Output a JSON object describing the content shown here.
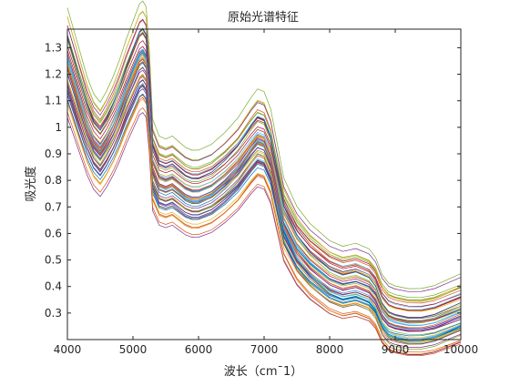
{
  "chart_data": {
    "type": "line",
    "title": "原始光谱特征",
    "xlabel": "波长（cm¯1）",
    "ylabel": "吸光度",
    "xlim": [
      4000,
      10000
    ],
    "ylim": [
      0.2,
      1.37
    ],
    "xticks": [
      4000,
      5000,
      6000,
      7000,
      8000,
      9000,
      10000
    ],
    "yticks": [
      0.3,
      0.4,
      0.5,
      0.6,
      0.7,
      0.8,
      0.9,
      1,
      1.1,
      1.2,
      1.3
    ],
    "grid": false,
    "legend": "none",
    "series_count": 60,
    "series": [
      {
        "x": [
          4000,
          4100,
          4200,
          4300,
          4400,
          4500,
          4600,
          4700,
          4800,
          4900,
          5000,
          5100,
          5150,
          5200,
          5250,
          5300,
          5400,
          5500,
          5600,
          5700,
          5800,
          5900,
          6000,
          6200,
          6400,
          6600,
          6800,
          6900,
          7000,
          7100,
          7200,
          7300,
          7400,
          7500,
          7700,
          8000,
          8200,
          8400,
          8600,
          8700,
          8800,
          8900,
          9000,
          9200,
          9400,
          9600,
          9800,
          10000
        ],
        "values": [
          1.25,
          1.17,
          1.09,
          1.01,
          0.95,
          0.92,
          0.96,
          1.01,
          1.07,
          1.14,
          1.2,
          1.26,
          1.27,
          1.25,
          1.1,
          0.86,
          0.8,
          0.79,
          0.8,
          0.78,
          0.76,
          0.75,
          0.75,
          0.77,
          0.81,
          0.86,
          0.93,
          0.96,
          0.95,
          0.89,
          0.77,
          0.65,
          0.6,
          0.55,
          0.49,
          0.43,
          0.41,
          0.42,
          0.4,
          0.37,
          0.31,
          0.28,
          0.27,
          0.26,
          0.26,
          0.27,
          0.29,
          0.31
        ]
      }
    ]
  },
  "colors": {
    "palette": [
      "#0072BD",
      "#D95319",
      "#EDB120",
      "#7E2F8E",
      "#77AC30",
      "#4DBEEE",
      "#A2142F"
    ],
    "axis": "#262626"
  }
}
